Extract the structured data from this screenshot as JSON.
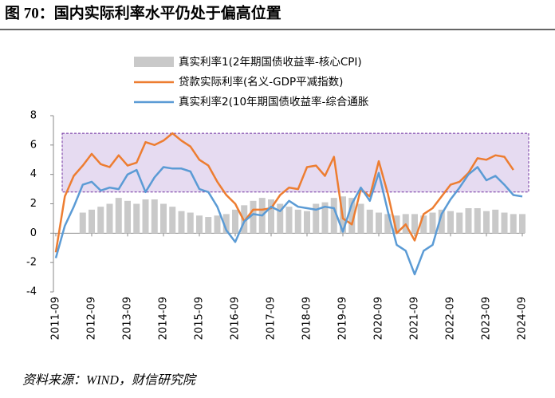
{
  "title": "图 70：国内实际利率水平仍处于偏高位置",
  "source": "资料来源：WIND，财信研究院",
  "chart_data": {
    "type": "combo",
    "categories": [
      "2011-09",
      null,
      null,
      null,
      "2012-09",
      null,
      null,
      null,
      "2013-09",
      null,
      null,
      null,
      "2014-09",
      null,
      null,
      null,
      "2015-09",
      null,
      null,
      null,
      "2016-09",
      null,
      null,
      null,
      "2017-09",
      null,
      null,
      null,
      "2018-09",
      null,
      null,
      null,
      "2019-09",
      null,
      null,
      null,
      "2020-09",
      null,
      null,
      null,
      "2021-09",
      null,
      null,
      null,
      "2022-09",
      null,
      null,
      null,
      "2023-09",
      null,
      null,
      null,
      "2024-09"
    ],
    "series": [
      {
        "name": "真实利率1(2年期国债收益率-核心CPI)",
        "type": "bar",
        "color": "#c9c9c9",
        "values": [
          null,
          null,
          null,
          1.4,
          1.6,
          1.8,
          2.0,
          2.4,
          2.2,
          2.0,
          2.3,
          2.3,
          2.0,
          1.8,
          1.5,
          1.4,
          1.2,
          1.1,
          1.2,
          1.3,
          1.6,
          1.9,
          2.2,
          2.4,
          2.3,
          2.0,
          1.8,
          1.6,
          1.5,
          2.0,
          2.1,
          2.4,
          2.5,
          2.4,
          2.0,
          1.6,
          1.4,
          1.3,
          1.2,
          1.3,
          1.3,
          1.2,
          1.4,
          1.6,
          1.5,
          1.4,
          1.7,
          1.7,
          1.5,
          1.6,
          1.4,
          1.3,
          1.3
        ]
      },
      {
        "name": "贷款实际利率(名义-GDP平减指数)",
        "type": "line",
        "color": "#ed7d31",
        "values": [
          -1.3,
          2.5,
          3.9,
          4.6,
          5.4,
          4.7,
          4.5,
          5.3,
          4.6,
          4.8,
          6.2,
          6.0,
          6.3,
          6.8,
          6.3,
          5.9,
          5.0,
          4.6,
          3.5,
          2.6,
          2.0,
          0.8,
          1.6,
          1.6,
          1.7,
          2.6,
          3.1,
          3.0,
          4.5,
          4.6,
          3.9,
          5.2,
          1.0,
          0.6,
          3.0,
          2.5,
          4.9,
          2.7,
          0.0,
          0.6,
          -0.5,
          1.3,
          1.7,
          2.5,
          3.3,
          3.5,
          4.1,
          5.1,
          5.0,
          5.3,
          5.2,
          4.3,
          null
        ]
      },
      {
        "name": "真实利率2(10年期国债收益率-综合通胀",
        "type": "line",
        "color": "#5b9bd5",
        "values": [
          -1.7,
          0.5,
          1.8,
          3.3,
          3.5,
          2.9,
          3.1,
          3.0,
          4.0,
          4.3,
          2.8,
          3.8,
          4.5,
          4.4,
          4.4,
          4.2,
          3.0,
          2.8,
          1.8,
          0.2,
          -0.6,
          0.8,
          1.3,
          1.2,
          1.8,
          1.5,
          2.2,
          1.8,
          1.7,
          1.6,
          1.8,
          1.7,
          0.1,
          2.0,
          3.1,
          2.2,
          4.1,
          1.5,
          -0.8,
          -1.2,
          -2.8,
          -1.2,
          -0.8,
          1.3,
          2.3,
          3.1,
          4.0,
          4.5,
          3.6,
          3.9,
          3.3,
          2.6,
          2.5
        ]
      }
    ],
    "band": [
      2.8,
      6.8
    ],
    "ylim": [
      -4,
      8
    ],
    "yticks": [
      -4,
      -2,
      0,
      2,
      4,
      6,
      8
    ]
  }
}
